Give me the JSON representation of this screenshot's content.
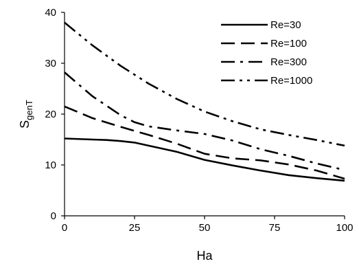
{
  "chart_data": {
    "type": "line",
    "title": "",
    "xlabel": "Ha",
    "ylabel": {
      "main": "S",
      "sub": "genT"
    },
    "xlim": [
      0,
      100
    ],
    "ylim": [
      0,
      40
    ],
    "x_ticks": [
      0,
      25,
      50,
      75,
      100
    ],
    "y_ticks": [
      0,
      10,
      20,
      30,
      40
    ],
    "grid": false,
    "legend_position": "top-right",
    "series": [
      {
        "name": "Re=30",
        "dash": "solid",
        "color": "#000000",
        "points": [
          [
            0,
            15.2
          ],
          [
            10,
            15.0
          ],
          [
            15,
            14.9
          ],
          [
            20,
            14.7
          ],
          [
            25,
            14.4
          ],
          [
            30,
            13.8
          ],
          [
            40,
            12.6
          ],
          [
            50,
            11.0
          ],
          [
            60,
            9.9
          ],
          [
            70,
            8.9
          ],
          [
            80,
            8.0
          ],
          [
            90,
            7.4
          ],
          [
            100,
            6.9
          ]
        ]
      },
      {
        "name": "Re=100",
        "dash": "dash",
        "color": "#000000",
        "points": [
          [
            0,
            21.5
          ],
          [
            10,
            19.2
          ],
          [
            20,
            17.5
          ],
          [
            30,
            15.9
          ],
          [
            40,
            14.2
          ],
          [
            50,
            12.2
          ],
          [
            60,
            11.3
          ],
          [
            70,
            10.9
          ],
          [
            80,
            10.1
          ],
          [
            90,
            8.9
          ],
          [
            100,
            7.3
          ]
        ]
      },
      {
        "name": "Re=300",
        "dash": "dashdot",
        "color": "#000000",
        "points": [
          [
            0,
            28.2
          ],
          [
            10,
            23.5
          ],
          [
            20,
            19.8
          ],
          [
            25,
            18.4
          ],
          [
            30,
            17.6
          ],
          [
            40,
            16.8
          ],
          [
            50,
            16.1
          ],
          [
            60,
            14.8
          ],
          [
            70,
            13.1
          ],
          [
            80,
            11.8
          ],
          [
            90,
            10.3
          ],
          [
            100,
            9.0
          ]
        ]
      },
      {
        "name": "Re=1000",
        "dash": "dashdotdot",
        "color": "#000000",
        "points": [
          [
            0,
            38.0
          ],
          [
            10,
            33.5
          ],
          [
            20,
            29.5
          ],
          [
            30,
            26.0
          ],
          [
            40,
            23.0
          ],
          [
            50,
            20.5
          ],
          [
            60,
            18.6
          ],
          [
            70,
            17.0
          ],
          [
            80,
            15.9
          ],
          [
            90,
            14.9
          ],
          [
            100,
            13.8
          ]
        ]
      }
    ]
  }
}
